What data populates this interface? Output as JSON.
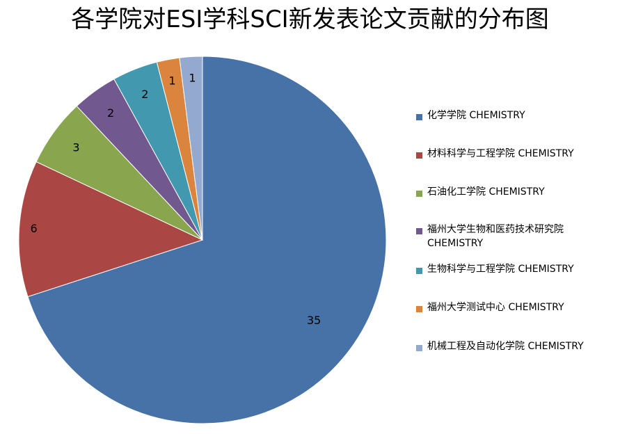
{
  "chart_data": {
    "type": "pie",
    "title": "各学院对ESI学科SCI新发表论文贡献的分布图",
    "categories": [
      "化学学院 CHEMISTRY",
      "材料科学与工程学院 CHEMISTRY",
      "石油化工学院 CHEMISTRY",
      "福州大学生物和医药技术研究院 CHEMISTRY",
      "生物科学与工程学院 CHEMISTRY",
      "福州大学测试中心 CHEMISTRY",
      "机械工程及自动化学院 CHEMISTRY"
    ],
    "values": [
      35,
      6,
      3,
      2,
      2,
      1,
      1
    ],
    "colors": [
      "#4672A8",
      "#AA4644",
      "#89A54E",
      "#71588F",
      "#4198AF",
      "#DB843D",
      "#93A9CF"
    ],
    "data_labels": [
      "35",
      "6",
      "3",
      "2",
      "2",
      "1",
      "1"
    ],
    "legend_position": "right"
  }
}
